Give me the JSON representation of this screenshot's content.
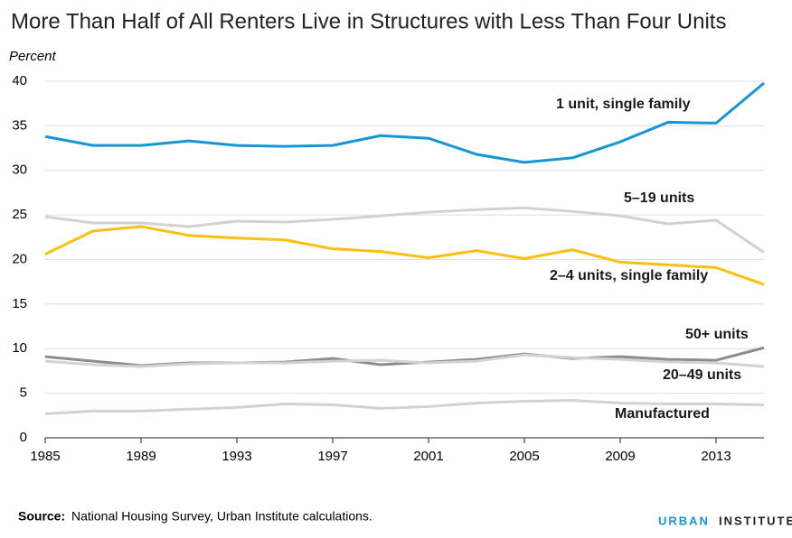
{
  "chart_data": {
    "type": "line",
    "title": "More Than Half of All Renters Live in Structures with Less Than Four Units",
    "y_label": "Percent",
    "x": [
      1985,
      1987,
      1989,
      1991,
      1993,
      1995,
      1997,
      1999,
      2001,
      2003,
      2005,
      2007,
      2009,
      2011,
      2013,
      2015
    ],
    "series": [
      {
        "name": "1 unit, single family",
        "color": "#1696d2",
        "values": [
          33.8,
          32.8,
          32.8,
          33.3,
          32.8,
          32.7,
          32.8,
          33.9,
          33.6,
          31.8,
          30.9,
          31.4,
          33.2,
          35.4,
          35.3,
          39.8
        ]
      },
      {
        "name": "5–19 units",
        "color": "#d2d2d2",
        "values": [
          24.8,
          24.1,
          24.1,
          23.7,
          24.3,
          24.2,
          24.5,
          24.9,
          25.3,
          25.6,
          25.8,
          25.4,
          24.9,
          24.0,
          24.4,
          20.8
        ]
      },
      {
        "name": "2–4 units, single family",
        "color": "#fdbf11",
        "values": [
          20.6,
          23.2,
          23.7,
          22.7,
          22.4,
          22.2,
          21.2,
          20.9,
          20.2,
          21.0,
          20.1,
          21.1,
          19.7,
          19.4,
          19.1,
          17.2
        ]
      },
      {
        "name": "50+ units",
        "color": "#8f8a8c",
        "values": [
          9.1,
          8.6,
          8.1,
          8.4,
          8.4,
          8.5,
          8.9,
          8.2,
          8.5,
          8.8,
          9.4,
          8.9,
          9.1,
          8.8,
          8.7,
          10.1
        ]
      },
      {
        "name": "20–49 units",
        "color": "#d2d2d2",
        "values": [
          8.6,
          8.2,
          8.0,
          8.3,
          8.4,
          8.4,
          8.6,
          8.7,
          8.4,
          8.6,
          9.3,
          9.0,
          8.8,
          8.5,
          8.4,
          8.0
        ]
      },
      {
        "name": "Manufactured",
        "color": "#d2d2d2",
        "values": [
          2.7,
          3.0,
          3.0,
          3.2,
          3.4,
          3.8,
          3.7,
          3.3,
          3.5,
          3.9,
          4.1,
          4.2,
          3.9,
          3.8,
          3.8,
          3.7
        ]
      }
    ],
    "xlim": [
      1985,
      2015
    ],
    "xticks": [
      1985,
      1989,
      1993,
      1997,
      2001,
      2005,
      2009,
      2013
    ],
    "ylim": [
      0,
      40
    ],
    "yticks": [
      0,
      5,
      10,
      15,
      20,
      25,
      30,
      35,
      40
    ],
    "grid": true,
    "source_label": "Source:",
    "source": "National Housing Survey, Urban Institute calculations.",
    "brand": [
      "URBAN",
      "INSTITUTE"
    ]
  }
}
